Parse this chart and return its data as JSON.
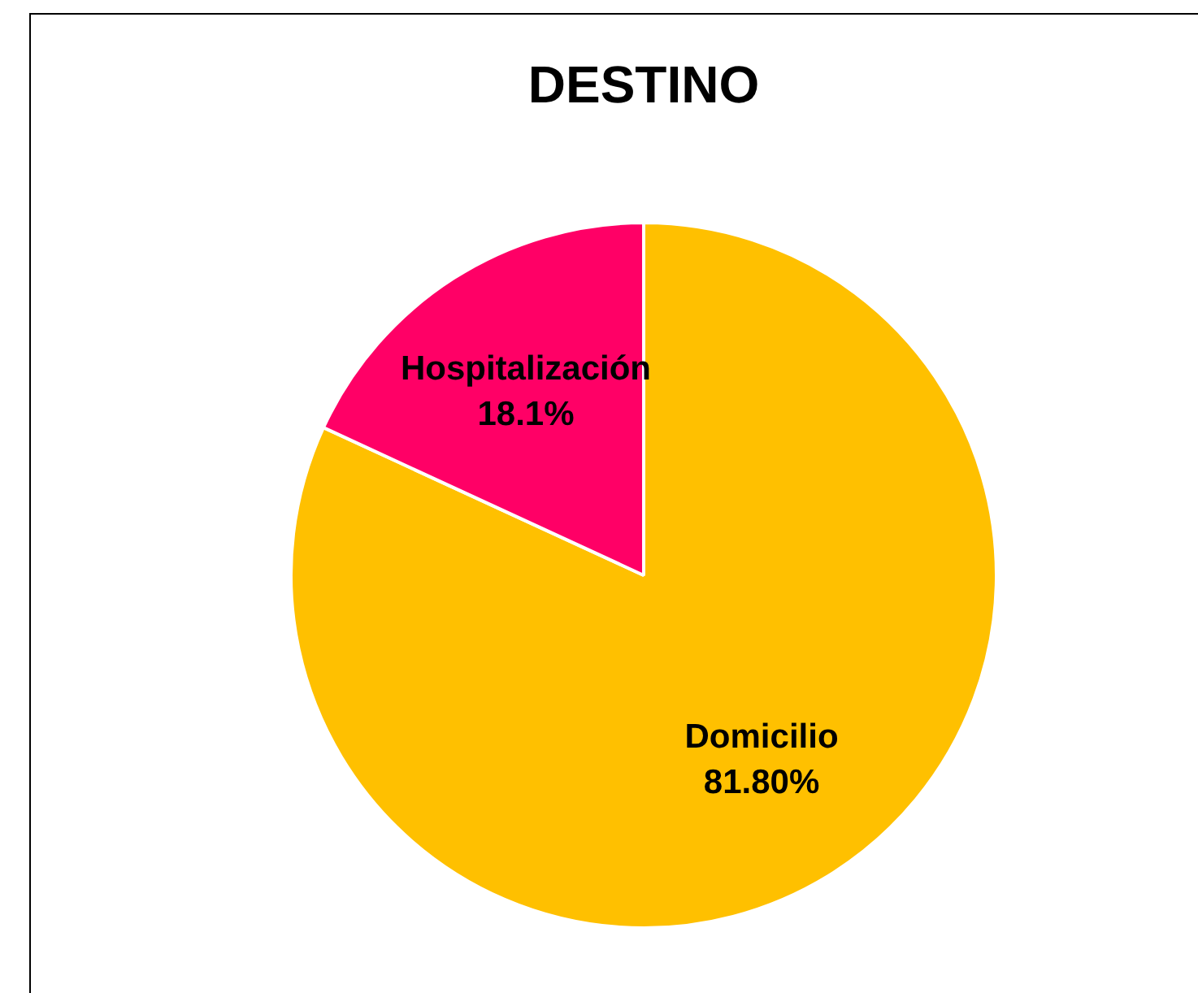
{
  "chart_data": {
    "type": "pie",
    "title": "DESTINO",
    "categories": [
      "Domicilio",
      "Hospitalización"
    ],
    "values": [
      81.8,
      18.1
    ],
    "colors": [
      "#ffc000",
      "#ff0066"
    ],
    "value_labels": [
      "81.80%",
      "18.1%"
    ],
    "legend": false
  }
}
